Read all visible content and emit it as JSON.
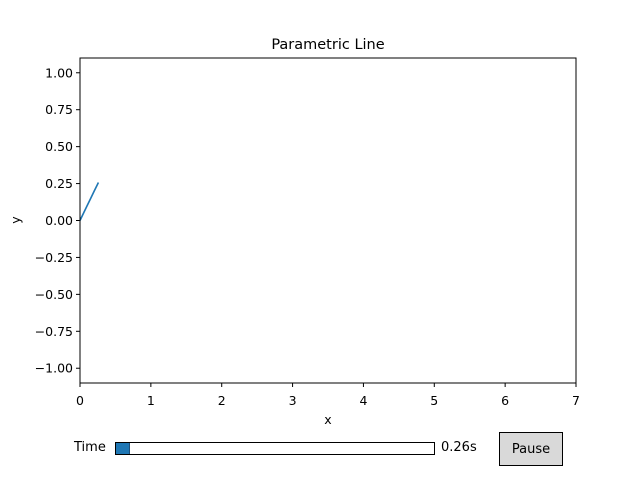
{
  "chart_data": {
    "type": "line",
    "title": "Parametric Line",
    "xlabel": "x",
    "ylabel": "y",
    "xlim": [
      0,
      7
    ],
    "ylim": [
      -1.1,
      1.1
    ],
    "xticks": [
      0,
      1,
      2,
      3,
      4,
      5,
      6,
      7
    ],
    "yticks": [
      1.0,
      0.75,
      0.5,
      0.25,
      0.0,
      -0.25,
      -0.5,
      -0.75,
      -1.0
    ],
    "xtick_labels": [
      "0",
      "1",
      "2",
      "3",
      "4",
      "5",
      "6",
      "7"
    ],
    "ytick_labels": [
      "1.00",
      "0.75",
      "0.50",
      "0.25",
      "0.00",
      "−0.25",
      "−0.50",
      "−0.75",
      "−1.00"
    ],
    "grid": false,
    "series": [
      {
        "color": "#1f77b4",
        "x": [
          0.0,
          0.05,
          0.1,
          0.15,
          0.2,
          0.26
        ],
        "y": [
          0.0,
          0.05,
          0.1,
          0.149,
          0.199,
          0.257
        ]
      }
    ]
  },
  "controls": {
    "slider": {
      "label": "Time",
      "value_text": "0.26s",
      "fraction": 0.04,
      "fill_color": "#1f77b4"
    },
    "pause_button": {
      "label": "Pause"
    }
  }
}
